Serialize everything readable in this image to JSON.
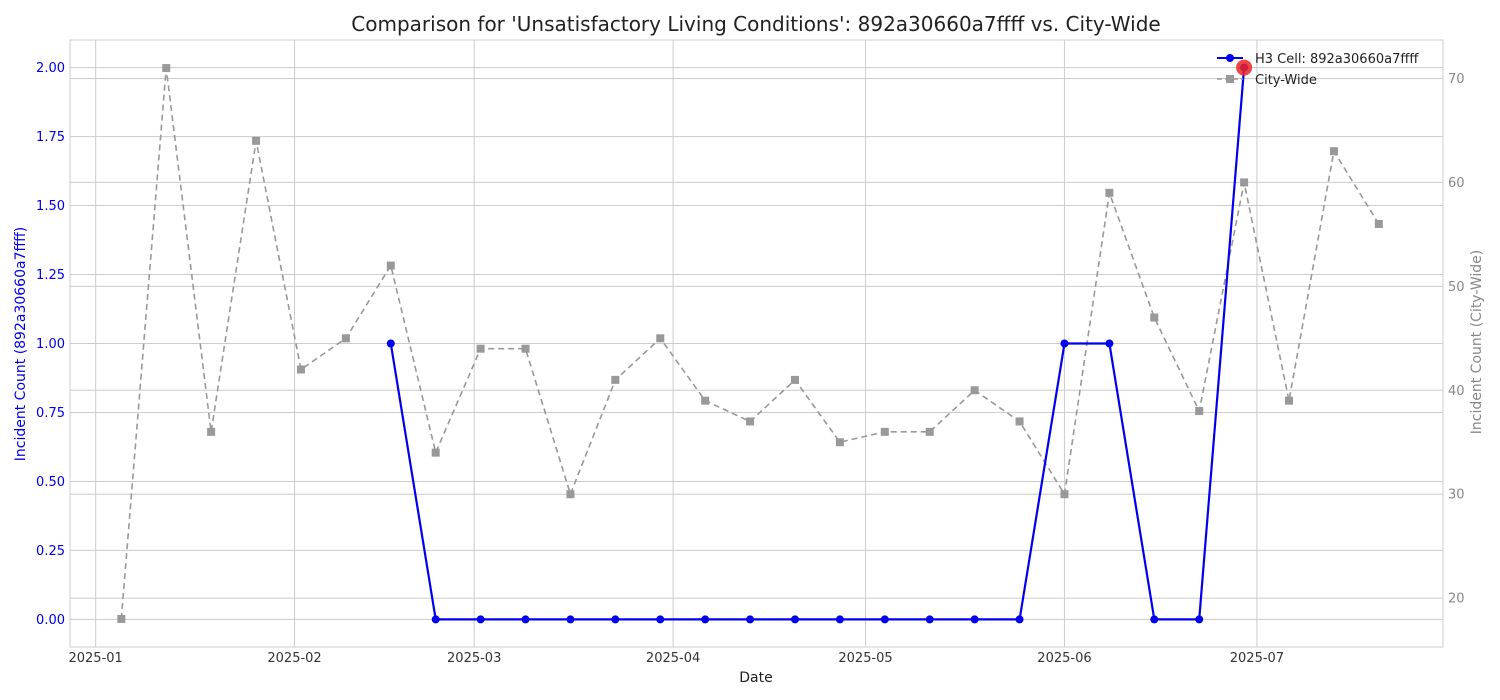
{
  "chart_data": {
    "type": "line",
    "title": "Comparison for 'Unsatisfactory Living Conditions': 892a30660a7ffff vs. City-Wide",
    "xlabel": "Date",
    "ylabel_left": "Incident Count (892a30660a7ffff)",
    "ylabel_right": "Incident Count (City-Wide)",
    "x_range": [
      "2024-12-28",
      "2025-07-30"
    ],
    "x_ticks": [
      "2025-01",
      "2025-02",
      "2025-03",
      "2025-04",
      "2025-05",
      "2025-06",
      "2025-07"
    ],
    "ylim_left": [
      -0.1,
      2.1
    ],
    "yticks_left": [
      "0.00",
      "0.25",
      "0.50",
      "0.75",
      "1.00",
      "1.25",
      "1.50",
      "1.75",
      "2.00"
    ],
    "ylim_right": [
      15.3,
      73.7
    ],
    "yticks_right": [
      "20",
      "30",
      "40",
      "50",
      "60",
      "70"
    ],
    "grid": true,
    "legend_position": "top-right",
    "series": [
      {
        "name": "H3 Cell: 892a30660a7ffff",
        "axis": "left",
        "color": "#0000ee",
        "marker": "circle",
        "line": "solid",
        "x": [
          "2025-02-16",
          "2025-02-23",
          "2025-03-02",
          "2025-03-09",
          "2025-03-16",
          "2025-03-23",
          "2025-03-30",
          "2025-04-06",
          "2025-04-13",
          "2025-04-20",
          "2025-04-27",
          "2025-05-04",
          "2025-05-11",
          "2025-05-18",
          "2025-05-25",
          "2025-06-01",
          "2025-06-08",
          "2025-06-15",
          "2025-06-22",
          "2025-06-29"
        ],
        "y": [
          1,
          0,
          0,
          0,
          0,
          0,
          0,
          0,
          0,
          0,
          0,
          0,
          0,
          0,
          0,
          1,
          1,
          0,
          0,
          2
        ]
      },
      {
        "name": "City-Wide",
        "axis": "right",
        "color": "#999999",
        "marker": "square",
        "line": "dashed",
        "x": [
          "2025-01-05",
          "2025-01-12",
          "2025-01-19",
          "2025-01-26",
          "2025-02-02",
          "2025-02-09",
          "2025-02-16",
          "2025-02-23",
          "2025-03-02",
          "2025-03-09",
          "2025-03-16",
          "2025-03-23",
          "2025-03-30",
          "2025-04-06",
          "2025-04-13",
          "2025-04-20",
          "2025-04-27",
          "2025-05-04",
          "2025-05-11",
          "2025-05-18",
          "2025-05-25",
          "2025-06-01",
          "2025-06-08",
          "2025-06-15",
          "2025-06-22",
          "2025-06-29",
          "2025-07-06",
          "2025-07-13",
          "2025-07-20"
        ],
        "y": [
          18,
          71,
          36,
          64,
          42,
          45,
          52,
          34,
          44,
          44,
          30,
          41,
          45,
          39,
          37,
          41,
          35,
          36,
          36,
          40,
          37,
          30,
          59,
          47,
          38,
          60,
          39,
          63,
          56
        ]
      }
    ],
    "highlight": {
      "x": "2025-06-29",
      "y": 2,
      "axis": "left",
      "color": "#ee2222"
    }
  }
}
